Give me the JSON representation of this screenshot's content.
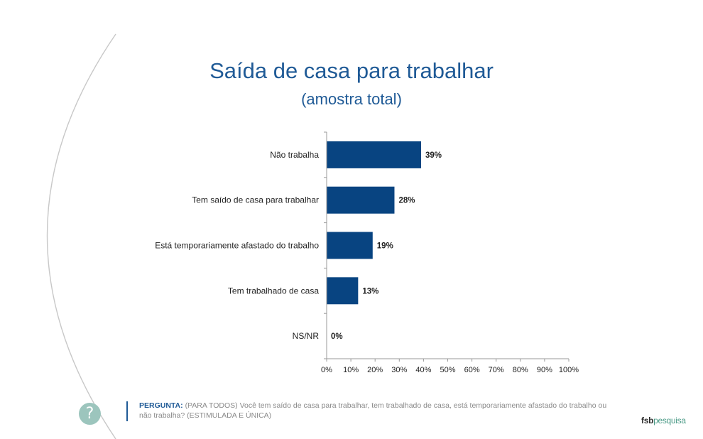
{
  "header": {
    "title": "Saída de casa para trabalhar",
    "subtitle": "(amostra total)"
  },
  "chart_data": {
    "type": "bar",
    "orientation": "horizontal",
    "categories": [
      "Não trabalha",
      "Tem saído de casa para trabalhar",
      "Está temporariamente afastado do trabalho",
      "Tem trabalhado de casa",
      "NS/NR"
    ],
    "values": [
      39,
      28,
      19,
      13,
      0
    ],
    "value_labels": [
      "39%",
      "28%",
      "19%",
      "13%",
      "0%"
    ],
    "xlim": [
      0,
      100
    ],
    "ticks": [
      "0%",
      "10%",
      "20%",
      "30%",
      "40%",
      "50%",
      "60%",
      "70%",
      "80%",
      "90%",
      "100%"
    ],
    "bar_color": "#084481",
    "grid": false
  },
  "footer": {
    "question_label": "PERGUNTA:",
    "question_text": "(PARA TODOS) Você tem saído de casa para trabalhar, tem trabalhado de casa, está temporariamente afastado do trabalho ou não trabalha? (ESTIMULADA E ÚNICA)",
    "help_icon": "question-mark-icon",
    "help_symbol": "?",
    "logo_part1": "fsb",
    "logo_part2": "pesquisa"
  },
  "colors": {
    "title": "#1f5a96",
    "accent": "#9cc5bd",
    "logo_green": "#4a9a86"
  }
}
